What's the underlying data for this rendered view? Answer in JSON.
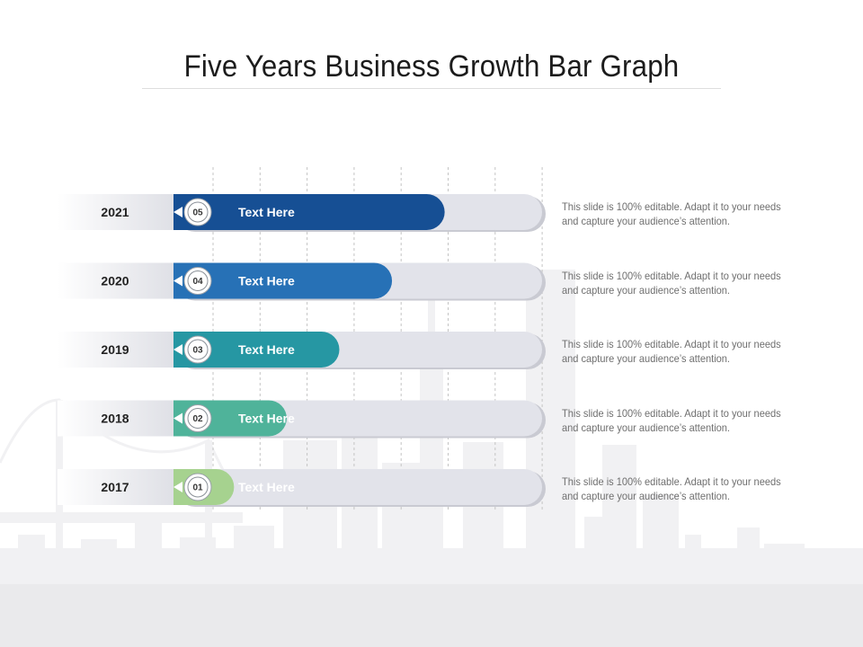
{
  "title": "Five Years Business Growth Bar Graph",
  "chart_data": {
    "type": "bar",
    "orientation": "horizontal",
    "grid": true,
    "categories": [
      "2021",
      "2020",
      "2019",
      "2018",
      "2017"
    ],
    "values": [
      5,
      4,
      3,
      2,
      1
    ],
    "xlim": [
      0,
      7
    ],
    "badges": [
      "05",
      "04",
      "03",
      "02",
      "01"
    ],
    "bar_labels": [
      "Text Here",
      "Text Here",
      "Text Here",
      "Text Here",
      "Text Here"
    ],
    "colors": [
      "#164f94",
      "#2771b6",
      "#2697a3",
      "#4fb39a",
      "#a6d28f"
    ],
    "descriptions": [
      "This slide is 100% editable. Adapt it to your needs and capture your audience’s attention.",
      "This slide is 100% editable. Adapt it to your needs and capture your audience’s attention.",
      "This slide is 100% editable. Adapt it to your needs and capture your audience’s attention.",
      "This slide is 100% editable. Adapt it to your needs and capture your audience’s attention.",
      "This slide is 100% editable. Adapt it to your needs and capture your audience’s attention."
    ]
  }
}
